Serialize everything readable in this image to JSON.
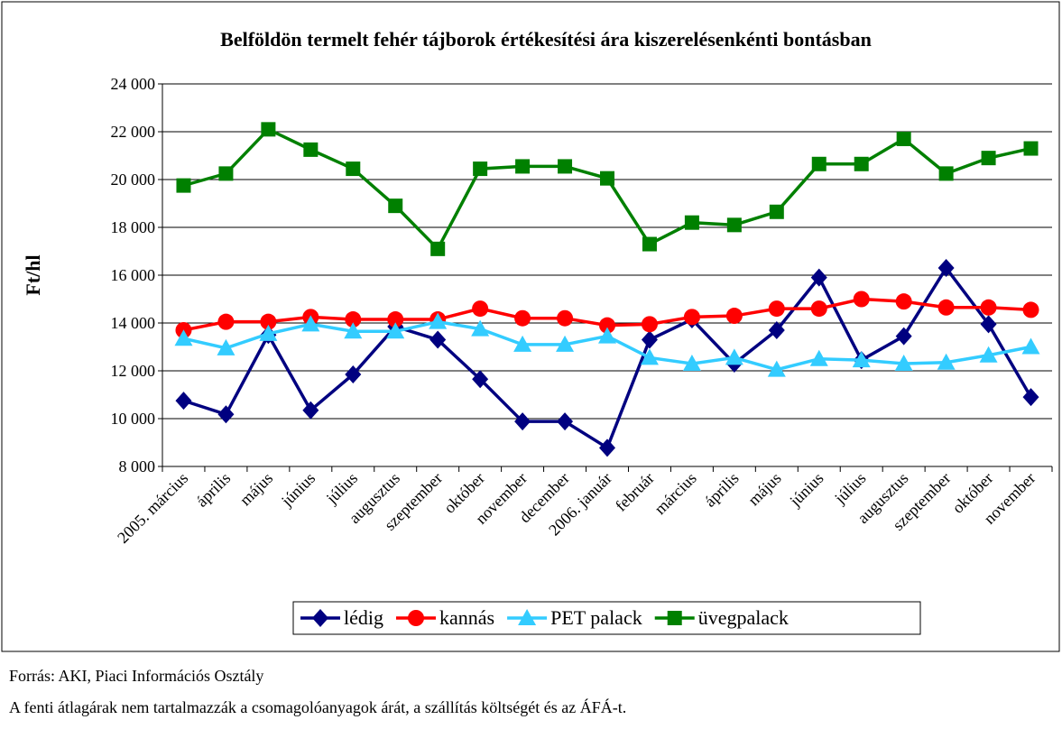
{
  "chart_data": {
    "type": "line",
    "title": "Belföldön termelt fehér tájborok értékesítési ára kiszerelésenkénti bontásban",
    "y_label": "Ft/hl",
    "categories": [
      "2005. március",
      "április",
      "május",
      "június",
      "július",
      "augusztus",
      "szeptember",
      "október",
      "november",
      "december",
      "2006. január",
      "február",
      "március",
      "április",
      "május",
      "június",
      "július",
      "augusztus",
      "szeptember",
      "október",
      "november"
    ],
    "series": [
      {
        "name": "lédig",
        "color": "#000080",
        "marker": "diamond",
        "values": [
          10750,
          10180,
          13500,
          10350,
          11850,
          13850,
          13300,
          11650,
          9880,
          9880,
          8780,
          13300,
          14150,
          12300,
          13700,
          15900,
          12450,
          13450,
          16300,
          13950,
          10900
        ]
      },
      {
        "name": "kannás",
        "color": "#ff0000",
        "marker": "circle",
        "values": [
          13700,
          14050,
          14050,
          14250,
          14150,
          14150,
          14150,
          14600,
          14200,
          14200,
          13900,
          13950,
          14250,
          14300,
          14600,
          14600,
          15000,
          14900,
          14650,
          14650,
          14550
        ]
      },
      {
        "name": "PET palack",
        "color": "#33ccff",
        "marker": "triangle",
        "values": [
          13350,
          12950,
          13550,
          13950,
          13650,
          13650,
          14050,
          13750,
          13100,
          13100,
          13450,
          12550,
          12300,
          12550,
          12050,
          12500,
          12450,
          12300,
          12350,
          12650,
          13000
        ]
      },
      {
        "name": "üvegpalack",
        "color": "#008000",
        "marker": "square",
        "values": [
          19750,
          20250,
          22100,
          21250,
          20450,
          18900,
          17100,
          20450,
          20550,
          20550,
          20050,
          17300,
          18200,
          18100,
          18650,
          20650,
          20650,
          21700,
          20250,
          20900,
          21300
        ]
      }
    ],
    "ylim": [
      8000,
      24000
    ],
    "yticks": [
      {
        "value": 8000,
        "label": "8 000"
      },
      {
        "value": 10000,
        "label": "10 000"
      },
      {
        "value": 12000,
        "label": "12 000"
      },
      {
        "value": 14000,
        "label": "14 000"
      },
      {
        "value": 16000,
        "label": "16 000"
      },
      {
        "value": 18000,
        "label": "18 000"
      },
      {
        "value": 20000,
        "label": "20 000"
      },
      {
        "value": 22000,
        "label": "22 000"
      },
      {
        "value": 24000,
        "label": "24 000"
      }
    ],
    "grid": true,
    "legend": "bottom",
    "source": "Forrás: AKI, Piaci Információs Osztály",
    "note": "A fenti átlagárak nem tartalmazzák a csomagolóanyagok árát, a szállítás költségét és az ÁFÁ-t."
  }
}
